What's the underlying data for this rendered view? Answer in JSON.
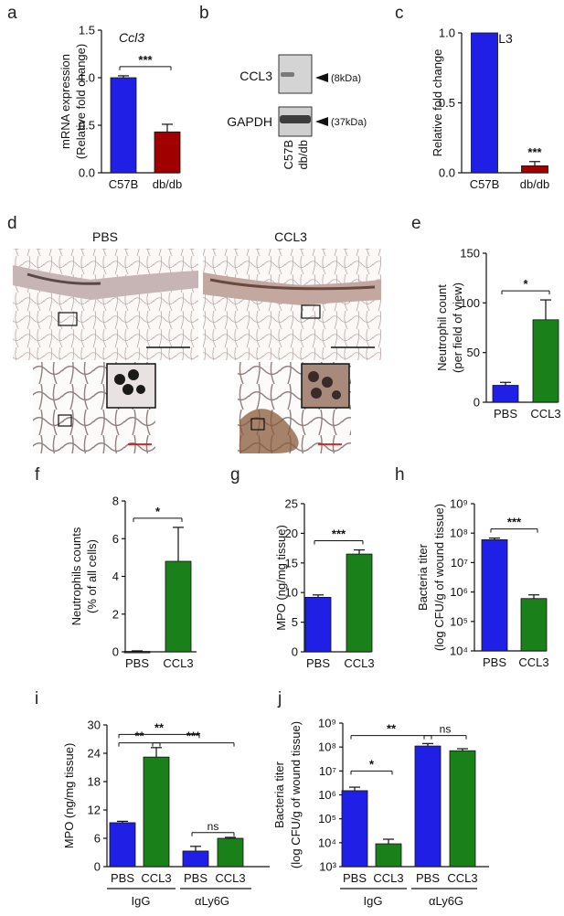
{
  "panels": {
    "a": "a",
    "b": "b",
    "c": "c",
    "d": "d",
    "e": "e",
    "f": "f",
    "g": "g",
    "h": "h",
    "i": "i",
    "j": "j"
  },
  "colors": {
    "blue": "#1f1fe6",
    "dark_red": "#a00000",
    "green": "#1a801a"
  },
  "western": {
    "labels": [
      "CCL3",
      "GAPDH"
    ],
    "sizes": [
      "(8kDa)",
      "(37kDa)"
    ],
    "lanes": [
      "C57B",
      "db/db"
    ]
  },
  "histology": {
    "labels": [
      "PBS",
      "CCL3"
    ]
  },
  "chart_data": [
    {
      "panel": "a",
      "type": "bar",
      "title": "Ccl3",
      "ylabel": "mRNA expression (Relative fold change)",
      "categories": [
        "C57B",
        "db/db"
      ],
      "values": [
        1.0,
        0.43
      ],
      "errors": [
        0.02,
        0.08
      ],
      "colors": [
        "#1f1fe6",
        "#a00000"
      ],
      "ylim": [
        0,
        1.5
      ],
      "yticks": [
        "0.0",
        "0.5",
        "1.0",
        "1.5"
      ],
      "sig": [
        {
          "label": "***",
          "from": 0,
          "to": 1
        }
      ]
    },
    {
      "panel": "c",
      "type": "bar",
      "title": "CCL3",
      "ylabel": "Relative fold change",
      "categories": [
        "C57B",
        "db/db"
      ],
      "values": [
        1.0,
        0.05
      ],
      "errors": [
        0.0,
        0.03
      ],
      "colors": [
        "#1f1fe6",
        "#a00000"
      ],
      "ylim": [
        0,
        1.0
      ],
      "yticks": [
        "0.0",
        "0.5",
        "1.0"
      ],
      "sig": [
        {
          "label": "***",
          "over": 1
        }
      ]
    },
    {
      "panel": "e",
      "type": "bar",
      "ylabel": "Neutrophil count (per field of view)",
      "categories": [
        "PBS",
        "CCL3"
      ],
      "values": [
        17,
        83
      ],
      "errors": [
        3,
        20
      ],
      "colors": [
        "#1f1fe6",
        "#1a801a"
      ],
      "ylim": [
        0,
        150
      ],
      "yticks": [
        "0",
        "50",
        "100",
        "150"
      ],
      "sig": [
        {
          "label": "*",
          "from": 0,
          "to": 1
        }
      ]
    },
    {
      "panel": "f",
      "type": "bar",
      "ylabel": "Neutrophils counts (% of all cells)",
      "categories": [
        "PBS",
        "CCL3"
      ],
      "values": [
        0.02,
        4.8
      ],
      "errors": [
        0.03,
        1.8
      ],
      "colors": [
        "#1f1fe6",
        "#1a801a"
      ],
      "ylim": [
        0,
        8
      ],
      "yticks": [
        "0",
        "2",
        "4",
        "6",
        "8"
      ],
      "sig": [
        {
          "label": "*",
          "from": 0,
          "to": 1
        }
      ]
    },
    {
      "panel": "g",
      "type": "bar",
      "ylabel": "MPO (ng/mg tissue)",
      "categories": [
        "PBS",
        "CCL3"
      ],
      "values": [
        9.2,
        16.5
      ],
      "errors": [
        0.4,
        0.7
      ],
      "colors": [
        "#1f1fe6",
        "#1a801a"
      ],
      "ylim": [
        0,
        25
      ],
      "yticks": [
        "0",
        "5",
        "10",
        "15",
        "20",
        "25"
      ],
      "sig": [
        {
          "label": "***",
          "from": 0,
          "to": 1
        }
      ]
    },
    {
      "panel": "h",
      "type": "bar",
      "log": true,
      "ylabel": "Bacteria titer (log CFU/g of wound tissue)",
      "categories": [
        "PBS",
        "CCL3"
      ],
      "values": [
        60000000,
        600000
      ],
      "errors": [
        8000000,
        200000
      ],
      "colors": [
        "#1f1fe6",
        "#1a801a"
      ],
      "ylim": [
        10000,
        1000000000
      ],
      "yticks": [
        "10⁴",
        "10⁵",
        "10⁶",
        "10⁷",
        "10⁸",
        "10⁹"
      ],
      "sig": [
        {
          "label": "***",
          "from": 0,
          "to": 1
        }
      ]
    },
    {
      "panel": "i",
      "type": "bar",
      "ylabel": "MPO (ng/mg tissue)",
      "categories": [
        "PBS",
        "CCL3",
        "PBS",
        "CCL3"
      ],
      "groups": [
        "IgG",
        "αLy6G"
      ],
      "values": [
        9.3,
        23.2,
        3.3,
        6.0
      ],
      "errors": [
        0.3,
        2.0,
        1.0,
        0.2
      ],
      "colors": [
        "#1f1fe6",
        "#1a801a",
        "#1f1fe6",
        "#1a801a"
      ],
      "ylim": [
        0,
        30
      ],
      "yticks": [
        "0",
        "6",
        "12",
        "18",
        "24",
        "30"
      ],
      "sig": [
        {
          "label": "**",
          "from": 0,
          "to": 1,
          "y": 26.2
        },
        {
          "label": "**",
          "from": 0,
          "to": 2,
          "y": 28.0
        },
        {
          "label": "***",
          "from": 1,
          "to": 3,
          "y": 26.2
        },
        {
          "label": "ns",
          "from": 2,
          "to": 3,
          "y": 7.2
        }
      ]
    },
    {
      "panel": "j",
      "type": "bar",
      "log": true,
      "ylabel": "Bacteria titer (log CFU/g of wound tissue)",
      "categories": [
        "PBS",
        "CCL3",
        "PBS",
        "CCL3"
      ],
      "groups": [
        "IgG",
        "αLy6G"
      ],
      "values": [
        1500000,
        9000,
        110000000,
        70000000
      ],
      "errors": [
        600000,
        5000,
        30000000,
        15000000
      ],
      "colors": [
        "#1f1fe6",
        "#1a801a",
        "#1f1fe6",
        "#1a801a"
      ],
      "ylim": [
        1000,
        1000000000
      ],
      "yticks": [
        "10³",
        "10⁴",
        "10⁵",
        "10⁶",
        "10⁷",
        "10⁸",
        "10⁹"
      ],
      "sig": [
        {
          "label": "*",
          "from": 0,
          "to": 1,
          "y": 10000000
        },
        {
          "label": "**",
          "from": 0,
          "to": 2,
          "y": 300000000
        },
        {
          "label": "ns",
          "from": 2,
          "to": 3,
          "y": 300000000
        }
      ]
    }
  ]
}
